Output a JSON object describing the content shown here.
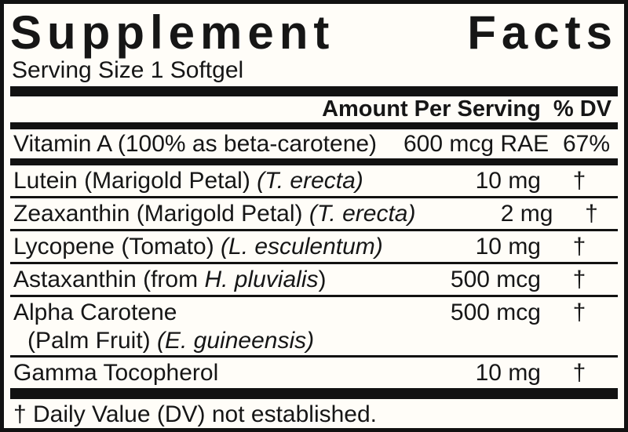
{
  "label": {
    "title_word1": "Supplement",
    "title_word2": "Facts",
    "serving_size": "Serving Size 1 Softgel",
    "columns": {
      "amount": "Amount Per Serving",
      "dv": "% DV"
    },
    "rows": [
      {
        "pre": "Vitamin A (100% as beta-carotene)",
        "italic": "",
        "post": "",
        "amount": "600 mcg RAE",
        "dv": "67%"
      },
      {
        "pre": "Lutein (Marigold Petal) ",
        "italic": "(T. erecta)",
        "post": "",
        "amount": "10 mg",
        "dv": "†"
      },
      {
        "pre": "Zeaxanthin (Marigold Petal) ",
        "italic": "(T. erecta)",
        "post": "",
        "amount": "2 mg",
        "dv": "†"
      },
      {
        "pre": "Lycopene (Tomato) ",
        "italic": "(L. esculentum)",
        "post": "",
        "amount": "10 mg",
        "dv": "†"
      },
      {
        "pre": "Astaxanthin (from ",
        "italic": "H. pluvialis",
        "post": ")",
        "amount": "500 mcg",
        "dv": "†"
      },
      {
        "pre": "Alpha Carotene",
        "italic": "",
        "post": "",
        "line2_pre": "(Palm Fruit) ",
        "line2_italic": "(E. guineensis)",
        "line2_post": "",
        "amount": "500 mcg",
        "dv": "†"
      },
      {
        "pre": "Gamma Tocopherol",
        "italic": "",
        "post": "",
        "amount": "10 mg",
        "dv": "†"
      }
    ],
    "footnote": "† Daily Value (DV) not established.",
    "colors": {
      "ink": "#121212",
      "background": "#fffdf8"
    }
  }
}
